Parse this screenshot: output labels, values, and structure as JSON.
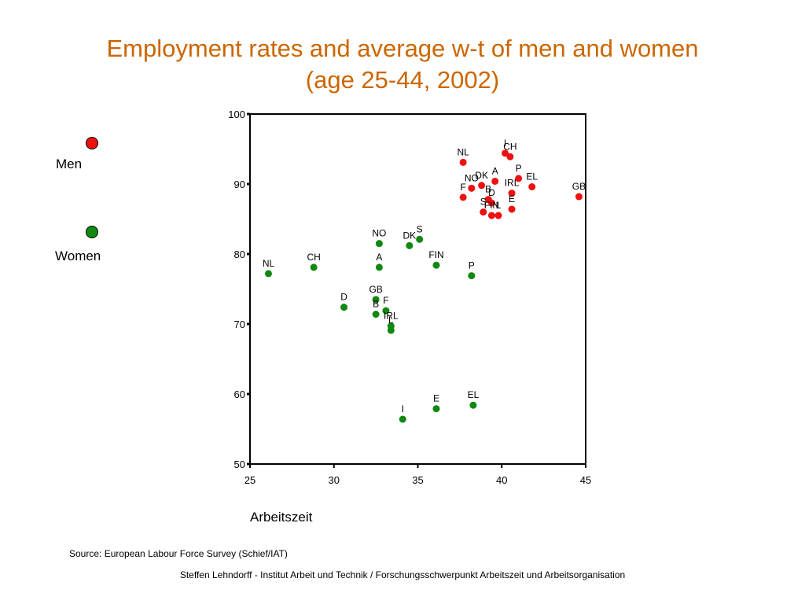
{
  "title_line1": "Employment rates and average w-t of men and women",
  "title_line2": "(age 25-44, 2002)",
  "legend": {
    "men": {
      "label": "Men",
      "color": "#ee1111"
    },
    "women": {
      "label": "Women",
      "color": "#118811"
    }
  },
  "source": "Source: European Labour Force Survey (Schief/IAT)",
  "footer": "Steffen Lehndorff - Institut Arbeit und Technik / Forschungsschwerpunkt Arbeitszeit und Arbeitsorganisation",
  "chart_data": {
    "type": "scatter",
    "title": "Employment rates and average w-t of men and women (age 25-44, 2002)",
    "xlabel": "Arbeitszeit",
    "ylabel": "",
    "xlim": [
      25,
      45
    ],
    "ylim": [
      50,
      100
    ],
    "x_ticks": [
      25,
      30,
      35,
      40,
      45
    ],
    "y_ticks": [
      50,
      60,
      70,
      80,
      90,
      100
    ],
    "grid": false,
    "legend_position": "left",
    "series": [
      {
        "name": "Men",
        "color": "#ee1111",
        "points": [
          {
            "label": "NL",
            "x": 37.7,
            "y": 93.1
          },
          {
            "label": "I",
            "x": 40.2,
            "y": 94.4
          },
          {
            "label": "CH",
            "x": 40.5,
            "y": 93.9
          },
          {
            "label": "P",
            "x": 41.0,
            "y": 90.8
          },
          {
            "label": "A",
            "x": 39.6,
            "y": 90.4
          },
          {
            "label": "DK",
            "x": 38.8,
            "y": 89.8
          },
          {
            "label": "NO",
            "x": 38.2,
            "y": 89.4
          },
          {
            "label": "F",
            "x": 37.7,
            "y": 88.1
          },
          {
            "label": "EL",
            "x": 41.8,
            "y": 89.6
          },
          {
            "label": "IRL",
            "x": 40.6,
            "y": 88.7
          },
          {
            "label": "B",
            "x": 39.2,
            "y": 87.8
          },
          {
            "label": "GB",
            "x": 44.6,
            "y": 88.2
          },
          {
            "label": "D",
            "x": 39.4,
            "y": 87.3
          },
          {
            "label": "S",
            "x": 38.9,
            "y": 86.0
          },
          {
            "label": "FIN",
            "x": 39.4,
            "y": 85.5
          },
          {
            "label": "L",
            "x": 39.8,
            "y": 85.5
          },
          {
            "label": "E",
            "x": 40.6,
            "y": 86.4
          }
        ]
      },
      {
        "name": "Women",
        "color": "#118811",
        "points": [
          {
            "label": "NO",
            "x": 32.7,
            "y": 81.5
          },
          {
            "label": "S",
            "x": 35.1,
            "y": 82.1
          },
          {
            "label": "DK",
            "x": 34.5,
            "y": 81.2
          },
          {
            "label": "FIN",
            "x": 36.1,
            "y": 78.4
          },
          {
            "label": "A",
            "x": 32.7,
            "y": 78.1
          },
          {
            "label": "P",
            "x": 38.2,
            "y": 76.9
          },
          {
            "label": "NL",
            "x": 26.1,
            "y": 77.2
          },
          {
            "label": "CH",
            "x": 28.8,
            "y": 78.1
          },
          {
            "label": "D",
            "x": 30.6,
            "y": 72.4
          },
          {
            "label": "GB",
            "x": 32.5,
            "y": 73.5
          },
          {
            "label": "B",
            "x": 32.5,
            "y": 71.4
          },
          {
            "label": "F",
            "x": 33.1,
            "y": 71.9
          },
          {
            "label": "IRL",
            "x": 33.4,
            "y": 69.7
          },
          {
            "label": "L",
            "x": 33.4,
            "y": 69.1
          },
          {
            "label": "EL",
            "x": 38.3,
            "y": 58.4
          },
          {
            "label": "E",
            "x": 36.1,
            "y": 57.9
          },
          {
            "label": "I",
            "x": 34.1,
            "y": 56.4
          }
        ]
      }
    ]
  }
}
